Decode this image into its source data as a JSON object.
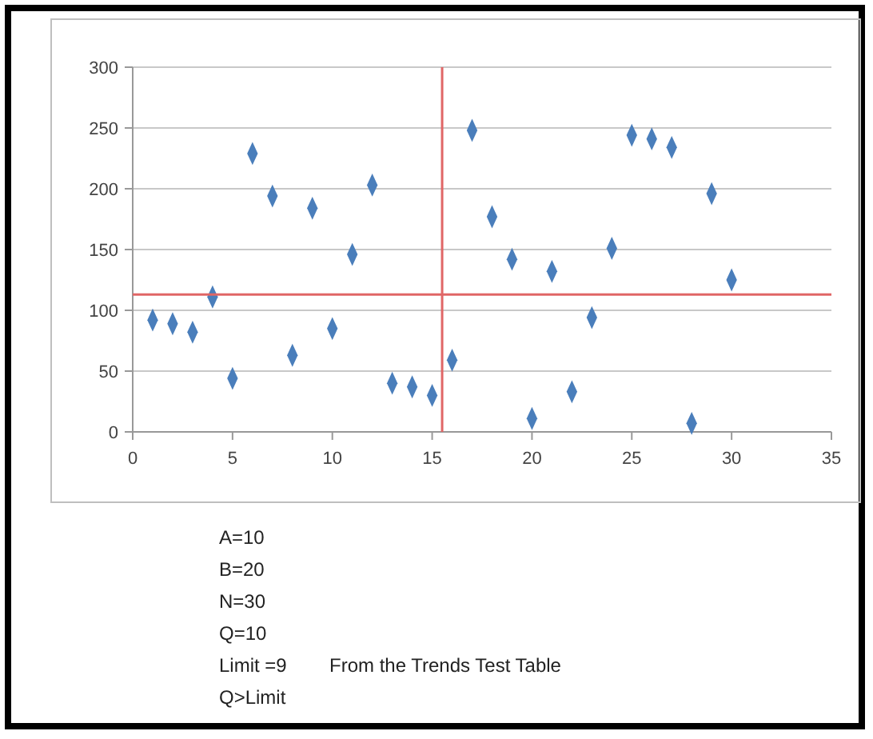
{
  "chart_data": {
    "type": "scatter",
    "x": [
      1,
      2,
      3,
      4,
      5,
      6,
      7,
      8,
      9,
      10,
      11,
      12,
      13,
      14,
      15,
      16,
      17,
      18,
      19,
      20,
      21,
      22,
      23,
      24,
      25,
      26,
      27,
      28,
      29,
      30
    ],
    "series": [
      {
        "color": "#4a7ebb",
        "values": [
          92,
          89,
          82,
          111,
          44,
          229,
          194,
          63,
          184,
          85,
          146,
          203,
          40,
          37,
          30,
          59,
          248,
          177,
          142,
          11,
          132,
          33,
          94,
          151,
          244,
          241,
          234,
          7,
          196,
          125
        ]
      }
    ],
    "xlim": [
      0,
      35
    ],
    "xticks": [
      0,
      5,
      10,
      15,
      20,
      25,
      30,
      35
    ],
    "ylim": [
      0,
      300
    ],
    "yticks": [
      0,
      50,
      100,
      150,
      200,
      250,
      300
    ],
    "grid": "y",
    "marker": "diamond",
    "ref_lines": [
      {
        "axis": "y",
        "value": 113,
        "color": "#e06666"
      },
      {
        "axis": "x",
        "value": 15.5,
        "color": "#e06666"
      }
    ],
    "annotations": [
      "A=10",
      "B=20",
      "N=30",
      "Q=10",
      "Limit =9",
      "From the Trends Test Table",
      "Q>Limit"
    ]
  }
}
